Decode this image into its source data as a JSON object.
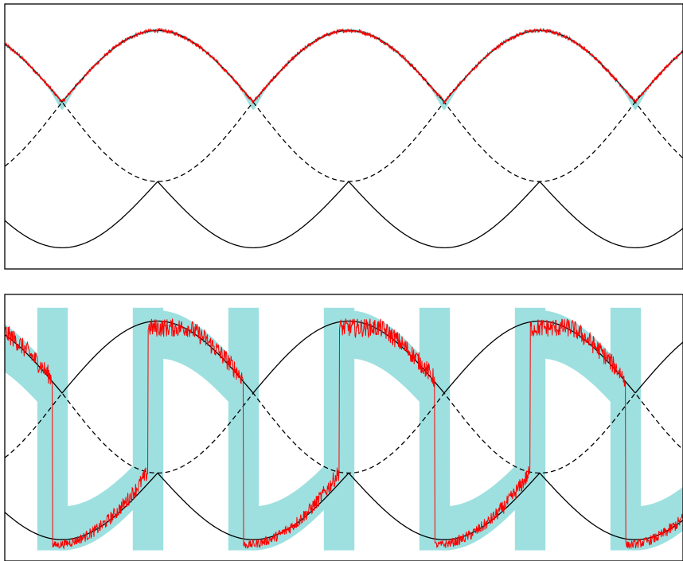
{
  "colors": {
    "band": "#9ee0e0",
    "noisy_trace": "#ff0000",
    "curves": "#000000",
    "frame": "#000000",
    "background": "#ffffff"
  },
  "chart_data": [
    {
      "type": "line",
      "panel": "top",
      "title": "",
      "xlabel": "",
      "ylabel": "",
      "xlim": [
        0,
        3.55
      ],
      "ylim": [
        -1,
        1
      ],
      "grid": false,
      "legend": "none",
      "axis_ticks": false,
      "period": 1,
      "cusp_x": [
        0.3,
        1.3,
        2.3,
        3.3
      ],
      "series": [
        {
          "role": "upper-solid",
          "style": "solid",
          "color": "#000000",
          "shape": "sine arches with cusps at minima",
          "max_y": 0.8,
          "min_y": 0.26
        },
        {
          "role": "middle-dashed",
          "style": "dashed",
          "color": "#000000",
          "shape": "cusped peaks / rounded troughs",
          "peak_y": 0.26,
          "trough_y": -0.34,
          "peak_x": [
            0.3,
            1.3,
            2.3,
            3.3
          ]
        },
        {
          "role": "lower-solid",
          "style": "solid",
          "color": "#000000",
          "shape": "cusped peaks / rounded troughs",
          "peak_y": -0.34,
          "trough_y": -0.84,
          "peak_x": [
            0.8,
            1.8,
            2.8
          ]
        },
        {
          "role": "measured-noisy",
          "style": "solid",
          "color": "#ff0000",
          "shape": "follows upper-solid with small noise",
          "noise_amp": 0.015
        },
        {
          "role": "uncertainty-band",
          "style": "fill",
          "color": "#9ee0e0",
          "shape": "narrow band around upper-solid, widening at cusps",
          "half_width": 0.012,
          "cusp_widen": 0.05
        }
      ]
    },
    {
      "type": "line",
      "panel": "bottom",
      "title": "",
      "xlabel": "",
      "ylabel": "",
      "xlim": [
        0,
        3.55
      ],
      "ylim": [
        -1,
        1
      ],
      "grid": false,
      "legend": "none",
      "axis_ticks": false,
      "period": 1,
      "switch_down_x": [
        0.25,
        1.25,
        2.25,
        3.25
      ],
      "switch_up_x": [
        0.75,
        1.75,
        2.75
      ],
      "series": [
        {
          "role": "upper-solid",
          "style": "solid",
          "color": "#000000",
          "max_y": 0.8,
          "min_y": 0.26
        },
        {
          "role": "middle-dashed",
          "style": "dashed",
          "color": "#000000",
          "peak_y": 0.26,
          "trough_y": -0.34
        },
        {
          "role": "lower-solid",
          "style": "solid",
          "color": "#000000",
          "peak_y": -0.34,
          "trough_y": -0.84
        },
        {
          "role": "measured-noisy",
          "style": "solid",
          "color": "#ff0000",
          "shape": "square-like wave switching between upper and lower branches",
          "high_y": 0.75,
          "low_y": -0.88,
          "noise_amp": 0.07
        },
        {
          "role": "uncertainty-band",
          "style": "fill",
          "color": "#9ee0e0",
          "shape": "wide vertical bands at switches plus sweeping envelopes",
          "top_y": 0.9,
          "bottom_y": -0.92
        }
      ]
    }
  ]
}
